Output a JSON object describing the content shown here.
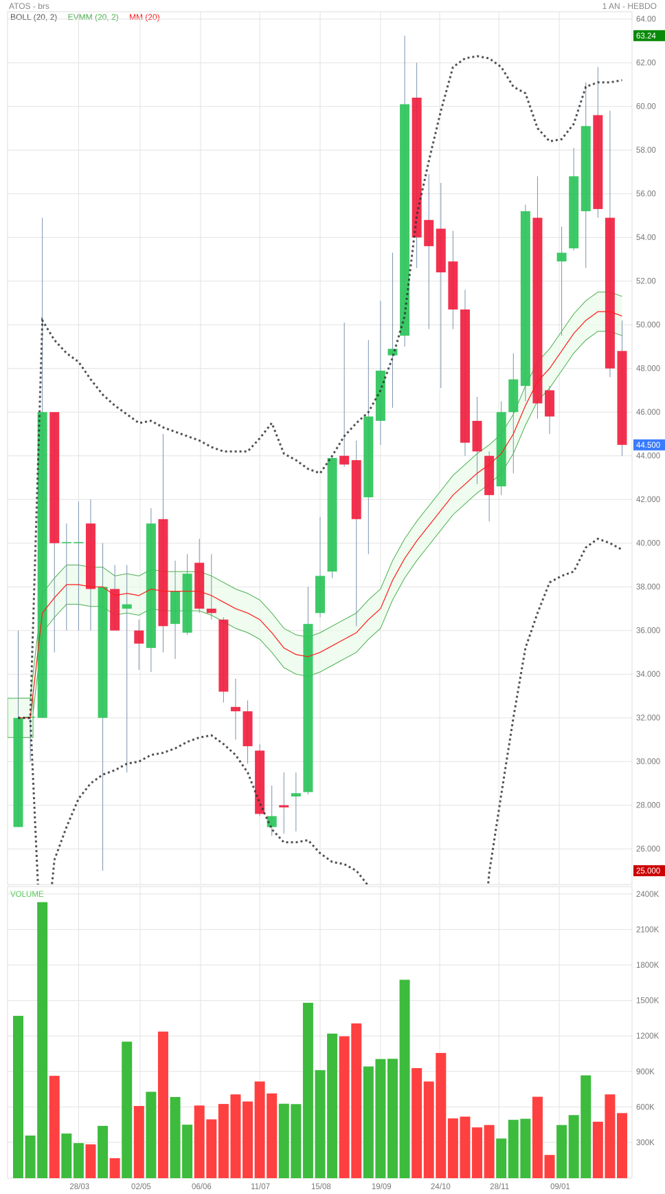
{
  "header": {
    "symbol": "ATOS - brs",
    "period": "1 AN - HEBDO"
  },
  "legend": {
    "boll": "BOLL (20, 2)",
    "evmm": "EVMM (20, 2)",
    "mm": "MM (20)"
  },
  "colors": {
    "up": "#2dc45a",
    "down": "#f0203f",
    "vol_up": "#3dbb3d",
    "vol_down": "#ff4040",
    "mm": "#ff1a1a",
    "evmm": "#4caf50",
    "boll": "#333333",
    "high_tag": "#0a8a0a",
    "last_tag": "#3a7bff",
    "low_tag": "#cc0000"
  },
  "tags": {
    "high": "63.24",
    "last": "44.500",
    "low": "25.000"
  },
  "chart_data": {
    "type": "candlestick",
    "price_axis": {
      "min": 24.7,
      "max": 64.3,
      "ticks": [
        "26.000",
        "28.000",
        "30.000",
        "32.000",
        "34.000",
        "36.000",
        "38.000",
        "40.000",
        "42.000",
        "44.000",
        "46.000",
        "48.000",
        "50.000",
        "52.00",
        "54.00",
        "56.00",
        "58.00",
        "60.00",
        "62.00",
        "64.00"
      ],
      "tick_values": [
        26,
        28,
        30,
        32,
        34,
        36,
        38,
        40,
        42,
        44,
        46,
        48,
        50,
        52,
        54,
        56,
        58,
        60,
        62,
        64
      ]
    },
    "x_labels": [
      "28/03",
      "02/05",
      "06/06",
      "11/07",
      "15/08",
      "19/09",
      "24/10",
      "28/11",
      "09/01"
    ],
    "x_label_index": [
      5.0,
      10.1,
      15.1,
      20.0,
      25.0,
      30.0,
      34.9,
      39.8,
      44.8
    ],
    "ohlc": [
      [
        27,
        36,
        27,
        32
      ],
      [
        32,
        32,
        30,
        32.05
      ],
      [
        32,
        54.9,
        32,
        46
      ],
      [
        46,
        46,
        35,
        40
      ],
      [
        40,
        40.9,
        36,
        40.05
      ],
      [
        40,
        41.9,
        36,
        40.05
      ],
      [
        40.9,
        42,
        36,
        37.9
      ],
      [
        32,
        40,
        25,
        38
      ],
      [
        37.9,
        39,
        36,
        36
      ],
      [
        37,
        39,
        29.5,
        37.2
      ],
      [
        36,
        36.5,
        34.2,
        35.4
      ],
      [
        35.2,
        41.6,
        34.1,
        40.9
      ],
      [
        41.1,
        45,
        35,
        36.2
      ],
      [
        36.3,
        39.2,
        34.7,
        37.8
      ],
      [
        35.9,
        39.5,
        35.8,
        38.6
      ],
      [
        39.1,
        40.2,
        36.8,
        37
      ],
      [
        37,
        39.5,
        36.5,
        36.8
      ],
      [
        36.5,
        36.6,
        32.7,
        33.2
      ],
      [
        32.5,
        33.8,
        31,
        32.3
      ],
      [
        32.3,
        32.8,
        29.9,
        30.7
      ],
      [
        30.5,
        30.8,
        27.5,
        27.6
      ],
      [
        27,
        28.9,
        26.6,
        27.5
      ],
      [
        28.0,
        29.5,
        26.7,
        27.9
      ],
      [
        28.4,
        29.5,
        26.8,
        28.55
      ],
      [
        28.6,
        38,
        28.5,
        36.3
      ],
      [
        36.8,
        41.2,
        36.6,
        38.5
      ],
      [
        38.7,
        44,
        38.4,
        43.9
      ],
      [
        44,
        50.1,
        43.5,
        43.6
      ],
      [
        43.8,
        44.7,
        36.2,
        41.1
      ],
      [
        42.1,
        49.3,
        39.5,
        45.8
      ],
      [
        45.6,
        51.1,
        44.5,
        47.9
      ],
      [
        48.6,
        53.3,
        46.2,
        48.9
      ],
      [
        49.5,
        63.24,
        49,
        60.1
      ],
      [
        60.4,
        62,
        52.6,
        54
      ],
      [
        54.8,
        56.9,
        49.8,
        53.6
      ],
      [
        54.4,
        56.5,
        47.1,
        52.4
      ],
      [
        52.9,
        54.3,
        49.8,
        50.7
      ],
      [
        50.7,
        51.6,
        44,
        44.6
      ],
      [
        45.6,
        46.7,
        42.7,
        44.2
      ],
      [
        44,
        44.2,
        41,
        42.2
      ],
      [
        42.6,
        46.5,
        42.2,
        46
      ],
      [
        46,
        48.7,
        43.2,
        47.5
      ],
      [
        47.2,
        55.5,
        46.5,
        55.2
      ],
      [
        54.9,
        56.8,
        45.7,
        46.4
      ],
      [
        47,
        47.2,
        45,
        45.8
      ],
      [
        52.9,
        54.5,
        49.5,
        53.3
      ],
      [
        53.5,
        58.1,
        53.4,
        56.8
      ],
      [
        55.2,
        61.1,
        52.6,
        59.1
      ],
      [
        59.6,
        61.8,
        54.9,
        55.3
      ],
      [
        54.9,
        59.8,
        47.6,
        48
      ],
      [
        48.8,
        50.2,
        44,
        44.5
      ]
    ],
    "mm20": [
      32,
      32,
      36.8,
      37.5,
      38.1,
      38.1,
      38,
      38,
      37.6,
      37.7,
      37.6,
      37.9,
      37.8,
      37.8,
      37.8,
      37.8,
      37.6,
      37.3,
      37,
      36.8,
      36.5,
      35.9,
      35.2,
      34.9,
      34.8,
      35,
      35.3,
      35.6,
      35.9,
      36.5,
      37,
      38.3,
      39.3,
      40.1,
      40.8,
      41.5,
      42.2,
      42.7,
      43.2,
      43.6,
      44.1,
      45,
      46.3,
      47.4,
      48,
      48.8,
      49.6,
      50.2,
      50.6,
      50.6,
      50.4
    ],
    "evmm_band": 0.9,
    "boll_upper": [
      32,
      32,
      50.2,
      49.3,
      48.7,
      48.3,
      47.5,
      46.8,
      46.3,
      45.9,
      45.5,
      45.6,
      45.3,
      45.1,
      44.9,
      44.7,
      44.4,
      44.2,
      44.2,
      44.2,
      44.8,
      45.5,
      44.1,
      43.8,
      43.4,
      43.2,
      44,
      44.9,
      45.5,
      46,
      47,
      48.5,
      50.4,
      55,
      57.5,
      59.8,
      61.8,
      62.2,
      62.3,
      62.2,
      61.8,
      60.9,
      60.6,
      59,
      58.4,
      58.5,
      59.2,
      60.9,
      61.1,
      61.1,
      61.2
    ],
    "boll_lower": [
      32,
      32,
      20,
      25.5,
      27,
      28.3,
      29,
      29.4,
      29.6,
      29.9,
      30,
      30.3,
      30.4,
      30.6,
      30.9,
      31.1,
      31.2,
      30.8,
      30.3,
      29.5,
      28.1,
      26.9,
      26.3,
      26.3,
      26.4,
      25.8,
      25.4,
      25.3,
      25,
      24.3,
      22,
      20,
      18,
      16,
      15,
      15,
      16,
      17,
      19,
      24.9,
      28.5,
      32,
      35.2,
      36.8,
      38.2,
      38.5,
      38.7,
      39.8,
      40.2,
      40,
      39.7
    ],
    "volume": {
      "label": "VOLUME",
      "unit": "K",
      "ticks": [
        "300K",
        "600K",
        "900K",
        "1200K",
        "1500K",
        "1800K",
        "2100K",
        "2400K"
      ],
      "tick_values": [
        300,
        600,
        900,
        1200,
        1500,
        1800,
        2100,
        2400
      ],
      "values": [
        1370,
        358,
        2331,
        863,
        375,
        294,
        284,
        440,
        167,
        1152,
        608,
        728,
        1237,
        684,
        450,
        612,
        495,
        625,
        706,
        646,
        815,
        714,
        627,
        624,
        1480,
        911,
        1220,
        1197,
        1306,
        942,
        1005,
        1007,
        1675,
        928,
        815,
        1056,
        503,
        518,
        427,
        447,
        333,
        491,
        500,
        686,
        194,
        447,
        531,
        867,
        475,
        706,
        548
      ],
      "direction": "gggrggrgrgrgrggrrrrrrrgggggrrgggg rrrrrrrgggrrgggrrr"
    }
  }
}
